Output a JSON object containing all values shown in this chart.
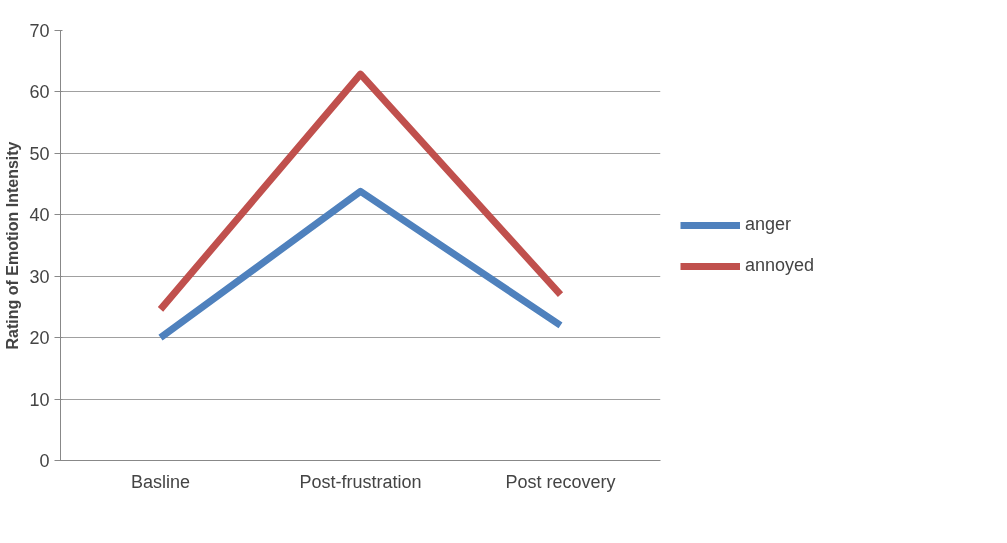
{
  "chart_data": {
    "type": "line",
    "ylabel": "Rating of Emotion Intensity",
    "categories": [
      "Basline",
      "Post-frustration",
      "Post recovery"
    ],
    "series": [
      {
        "name": "anger",
        "color": "#4f81bd",
        "values": [
          20,
          43.8,
          22
        ]
      },
      {
        "name": "annoyed",
        "color": "#c0504d",
        "values": [
          24.6,
          62.9,
          27
        ]
      }
    ],
    "ylim": [
      0,
      70
    ],
    "yticks": [
      0,
      10,
      20,
      30,
      40,
      50,
      60,
      70
    ],
    "grid": "y",
    "legend": "right",
    "marker": "none",
    "line_style": "solid"
  }
}
